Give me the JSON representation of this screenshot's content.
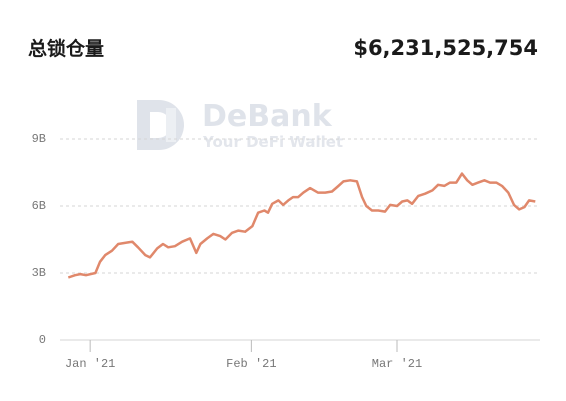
{
  "header": {
    "title": "总锁仓量",
    "value": "$6,231,525,754"
  },
  "watermark": {
    "title": "DeBank",
    "subtitle": "Your DeFi Wallet"
  },
  "chart_data": {
    "type": "line",
    "color": "#e0886b",
    "grid": true,
    "x": [
      -4.2,
      -2.9,
      -1.9,
      -0.8,
      1.0,
      1.9,
      2.9,
      4.2,
      5.4,
      6.7,
      8.1,
      9.2,
      10.6,
      11.5,
      12.9,
      14.0,
      15.0,
      16.3,
      17.7,
      19.2,
      20.4,
      21.2,
      22.5,
      23.7,
      25.0,
      26.0,
      27.3,
      28.5,
      29.8,
      31.2,
      32.3,
      33.5,
      34.2,
      35.0,
      36.2,
      37.1,
      38.1,
      39.0,
      40.0,
      41.0,
      42.3,
      43.8,
      45.2,
      46.5,
      47.5,
      48.7,
      50.0,
      51.3,
      52.3,
      53.1,
      54.2,
      55.4,
      56.7,
      57.7,
      59.0,
      60.0,
      61.0,
      61.9,
      63.1,
      64.4,
      65.8,
      66.9,
      68.1,
      69.2,
      70.4,
      71.5,
      72.5,
      73.5,
      74.6,
      75.8,
      76.9,
      78.1,
      79.2,
      80.4,
      81.5,
      82.5,
      83.5,
      84.4,
      85.6
    ],
    "values": [
      2.8,
      2.9,
      2.95,
      2.9,
      3.0,
      3.5,
      3.8,
      4.0,
      4.3,
      4.35,
      4.4,
      4.15,
      3.8,
      3.7,
      4.1,
      4.3,
      4.15,
      4.2,
      4.4,
      4.55,
      3.9,
      4.3,
      4.55,
      4.75,
      4.65,
      4.5,
      4.8,
      4.9,
      4.85,
      5.1,
      5.7,
      5.8,
      5.7,
      6.1,
      6.25,
      6.05,
      6.25,
      6.4,
      6.4,
      6.6,
      6.8,
      6.6,
      6.6,
      6.65,
      6.85,
      7.1,
      7.15,
      7.1,
      6.4,
      6.0,
      5.8,
      5.8,
      5.75,
      6.05,
      6.0,
      6.2,
      6.25,
      6.1,
      6.45,
      6.55,
      6.7,
      6.95,
      6.9,
      7.05,
      7.05,
      7.45,
      7.15,
      6.95,
      7.05,
      7.15,
      7.05,
      7.05,
      6.9,
      6.6,
      6.05,
      5.85,
      5.95,
      6.25,
      6.2
    ],
    "xlim": [
      -5.8,
      86.5
    ],
    "xticks": [
      {
        "value": 0,
        "label": "Jan '21"
      },
      {
        "value": 31,
        "label": "Feb '21"
      },
      {
        "value": 59,
        "label": "Mar '21"
      }
    ],
    "ylim": [
      0,
      9
    ],
    "yticks": [
      0,
      {
        "value": 3,
        "label": "3B"
      },
      {
        "value": 6,
        "label": "6B"
      },
      {
        "value": 9,
        "label": "9B"
      }
    ]
  }
}
